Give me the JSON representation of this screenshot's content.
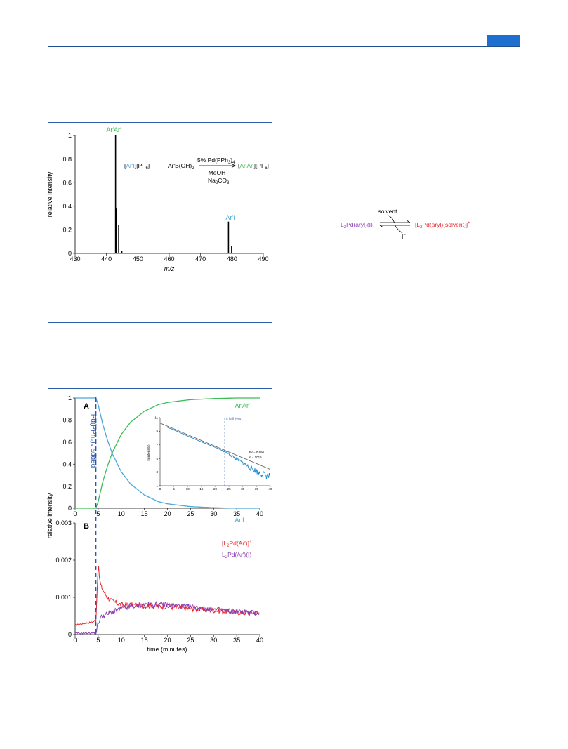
{
  "colors": {
    "blue": "#4aa8d8",
    "green": "#3cbc55",
    "red": "#e8262e",
    "purple": "#8a3fb5",
    "dash": "#2a58a8",
    "black": "#000000",
    "header": "#1f4f8f"
  },
  "figure1": {
    "ylabel": "relative intensity",
    "xlabel": "m/z",
    "peak_labels": [
      "Ar′Ar′",
      "Ar′I"
    ],
    "reaction": {
      "reactant1_cation": "Ar′I",
      "reactant1_anion": "PF",
      "reactant1_anion_sub": "6",
      "plus": "+",
      "reactant2": "Ar′B(OH)",
      "reactant2_sub": "2",
      "catalyst": "5% Pd(PPh",
      "catalyst_sub": "3",
      "catalyst_end": ")",
      "catalyst_sub2": "4",
      "solvent": "MeOH",
      "base": "Na",
      "base_sub": "2",
      "base_end": "CO",
      "base_sub2": "3",
      "product_cation": "Ar′Ar′",
      "product_anion": "PF",
      "product_anion_sub": "6"
    }
  },
  "scheme": {
    "left": "L",
    "left_sub": "2",
    "left_rest": "Pd(aryl)(I)",
    "solvent_label": "solvent",
    "iodide_label": "I",
    "right_open": "[L",
    "right_sub": "2",
    "right_rest": "Pd(aryl)(solvent)]",
    "right_sup": "+"
  },
  "figure2": {
    "panel_a_label": "A",
    "panel_b_label": "B",
    "ylabel": "relative intensity",
    "xlabel": "time (minutes)",
    "annotation": "Pd(PPh₃)₄ added",
    "series_labels": {
      "product": "Ar′Ar′",
      "reactant": "Ar′I"
    },
    "legend_b": {
      "red_open": "[L",
      "red_sub": "2",
      "red_rest": "Pd(Ar′)]",
      "red_sup": "+",
      "purple_open": "L",
      "purple_sub": "2",
      "purple_rest": "Pd(Ar′)(I)"
    },
    "inset": {
      "ylabel": "ln(intensity)",
      "half_lives_label": "5 half lives",
      "r2_label": "R² = 0.996",
      "n_label": "n = 1015"
    }
  },
  "chart_data": [
    {
      "id": "mass_spectrum",
      "type": "bar",
      "title": "",
      "xlabel": "m/z",
      "ylabel": "relative intensity",
      "xlim": [
        430,
        490
      ],
      "ylim": [
        0,
        1
      ],
      "xticks": [
        430,
        440,
        450,
        460,
        470,
        480,
        490
      ],
      "yticks": [
        0,
        0.2,
        0.4,
        0.6,
        0.8,
        1
      ],
      "x": [
        433.0,
        442.9,
        443.1,
        443.9,
        444.9,
        478.9,
        479.9
      ],
      "values": [
        0.005,
        1.0,
        0.38,
        0.24,
        0.02,
        0.27,
        0.06
      ]
    },
    {
      "id": "panel_A",
      "type": "line",
      "xlabel": "",
      "ylabel": "relative intensity",
      "xlim": [
        0,
        40
      ],
      "ylim": [
        0,
        1
      ],
      "xticks": [
        0,
        5,
        10,
        15,
        20,
        25,
        30,
        35,
        40
      ],
      "yticks": [
        0,
        0.2,
        0.4,
        0.6,
        0.8,
        1
      ],
      "injection_time": 4.5,
      "series": [
        {
          "name": "Ar′Ar′",
          "color": "#3cbc55",
          "x": [
            0,
            4.5,
            5,
            6,
            7,
            8,
            10,
            12,
            15,
            18,
            20,
            25,
            30,
            35,
            40
          ],
          "y": [
            0,
            0,
            0.06,
            0.24,
            0.38,
            0.5,
            0.67,
            0.78,
            0.88,
            0.94,
            0.96,
            0.985,
            0.995,
            1.0,
            1.0
          ]
        },
        {
          "name": "Ar′I",
          "color": "#4aa8d8",
          "x": [
            0,
            4.5,
            5,
            6,
            7,
            8,
            10,
            12,
            15,
            18,
            20,
            25,
            30,
            35,
            40
          ],
          "y": [
            1,
            1,
            0.94,
            0.76,
            0.62,
            0.5,
            0.33,
            0.22,
            0.12,
            0.06,
            0.04,
            0.015,
            0.005,
            0.0,
            0.0
          ]
        }
      ]
    },
    {
      "id": "panel_A_inset",
      "type": "line",
      "xlabel": "",
      "ylabel": "ln(intensity)",
      "xlim": [
        0,
        40
      ],
      "ylim": [
        1,
        11
      ],
      "xticks": [
        0,
        5,
        10,
        15,
        20,
        25,
        30,
        35,
        40
      ],
      "yticks": [
        1,
        3,
        5,
        7,
        9,
        11
      ],
      "half_life_marker": 23.5,
      "series": [
        {
          "name": "",
          "color": "#1a8ad0",
          "x": [
            0,
            2.5,
            5,
            10,
            15,
            20,
            23.5,
            28,
            32,
            36,
            40
          ],
          "y": [
            9.6,
            9.6,
            9.2,
            8.3,
            7.45,
            6.65,
            6.0,
            4.9,
            3.8,
            2.9,
            2.3
          ]
        },
        {
          "name": "",
          "color": "#555555",
          "x": [
            0,
            40
          ],
          "y": [
            10.2,
            3.4
          ]
        }
      ]
    },
    {
      "id": "panel_B",
      "type": "line",
      "xlabel": "time (minutes)",
      "ylabel": "relative intensity",
      "xlim": [
        0,
        40
      ],
      "ylim": [
        0,
        0.003
      ],
      "xticks": [
        0,
        5,
        10,
        15,
        20,
        25,
        30,
        35,
        40
      ],
      "yticks": [
        0,
        0.001,
        0.002,
        0.003
      ],
      "series": [
        {
          "name": "[L₂Pd(Ar′)]⁺",
          "color": "#e8262e",
          "x": [
            0,
            1,
            2,
            3,
            4,
            4.5,
            4.8,
            5,
            5.3,
            5.6,
            6,
            7,
            8,
            10,
            12,
            15,
            20,
            25,
            30,
            35,
            40
          ],
          "y": [
            0.00025,
            0.00028,
            0.0003,
            0.00032,
            0.00035,
            0.0004,
            0.0013,
            0.0019,
            0.0015,
            0.0013,
            0.0012,
            0.001,
            0.0009,
            0.0008,
            0.0008,
            0.00078,
            0.00075,
            0.0007,
            0.00065,
            0.0006,
            0.00058
          ]
        },
        {
          "name": "L₂Pd(Ar′)(I)",
          "color": "#8a3fb5",
          "x": [
            0,
            2,
            4,
            4.5,
            5,
            5.5,
            6,
            8,
            10,
            15,
            20,
            25,
            30,
            35,
            40
          ],
          "y": [
            3e-05,
            4e-05,
            4e-05,
            6e-05,
            0.0003,
            0.00045,
            0.0005,
            0.0006,
            0.0007,
            0.00082,
            0.0008,
            0.00075,
            0.00068,
            0.00062,
            0.00058
          ]
        }
      ]
    }
  ]
}
